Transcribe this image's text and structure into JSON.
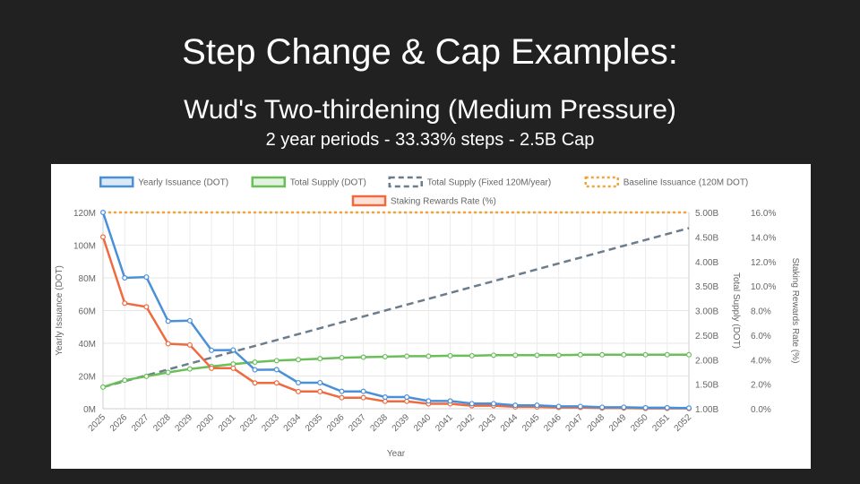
{
  "slide": {
    "title": "Step Change & Cap Examples:",
    "subtitle": "Wud's Two-thirdening (Medium Pressure)",
    "subsubtitle": "2 year periods - 33.33% steps - 2.5B Cap"
  },
  "chart_data": {
    "type": "line",
    "xlabel": "Year",
    "y_left_label": "Yearly Issuance (DOT)",
    "y_right1_label": "Total Supply (DOT)",
    "y_right2_label": "Staking Rewards Rate (%)",
    "x": [
      "2025",
      "2026",
      "2027",
      "2028",
      "2029",
      "2030",
      "2031",
      "2032",
      "2033",
      "2034",
      "2035",
      "2036",
      "2037",
      "2038",
      "2039",
      "2040",
      "2041",
      "2042",
      "2043",
      "2044",
      "2045",
      "2046",
      "2047",
      "2048",
      "2049",
      "2050",
      "2051",
      "2052"
    ],
    "y_left_ticks": [
      "0M",
      "20M",
      "40M",
      "60M",
      "80M",
      "100M",
      "120M"
    ],
    "y_left_range": [
      0,
      120
    ],
    "y_right1_ticks": [
      "1.00B",
      "1.50B",
      "2.00B",
      "2.50B",
      "3.00B",
      "3.50B",
      "4.00B",
      "4.50B",
      "5.00B"
    ],
    "y_right1_range": [
      1.0,
      5.0
    ],
    "y_right2_ticks": [
      "0.0%",
      "2.0%",
      "4.0%",
      "6.0%",
      "8.0%",
      "10.0%",
      "12.0%",
      "14.0%",
      "16.0%"
    ],
    "y_right2_range": [
      0,
      16
    ],
    "grid": true,
    "legend_position": "top",
    "series": [
      {
        "name": "Yearly Issuance (DOT)",
        "axis": "left",
        "color": "#4a90d9",
        "style": "solid",
        "markers": true,
        "values": [
          120,
          80,
          80.5,
          53.5,
          53.8,
          35.7,
          35.9,
          23.8,
          23.9,
          15.9,
          15.9,
          10.6,
          10.6,
          7.1,
          7.1,
          4.7,
          4.7,
          3.1,
          3.1,
          2.1,
          2.1,
          1.4,
          1.4,
          0.9,
          0.9,
          0.6,
          0.6,
          0.4
        ]
      },
      {
        "name": "Total Supply (DOT)",
        "axis": "right1",
        "color": "#6abf59",
        "style": "solid",
        "markers": true,
        "values": [
          1.44,
          1.58,
          1.66,
          1.74,
          1.81,
          1.86,
          1.91,
          1.95,
          1.98,
          2.0,
          2.02,
          2.04,
          2.05,
          2.06,
          2.07,
          2.07,
          2.08,
          2.08,
          2.09,
          2.09,
          2.09,
          2.09,
          2.1,
          2.1,
          2.1,
          2.1,
          2.1,
          2.1
        ]
      },
      {
        "name": "Total Supply (Fixed 120M/year)",
        "axis": "right1",
        "color": "#6b7c8c",
        "style": "dashed",
        "markers": false,
        "values": [
          1.44,
          1.56,
          1.68,
          1.8,
          1.92,
          2.04,
          2.16,
          2.28,
          2.4,
          2.52,
          2.64,
          2.76,
          2.88,
          3.0,
          3.12,
          3.24,
          3.36,
          3.48,
          3.6,
          3.72,
          3.84,
          3.96,
          4.08,
          4.2,
          4.32,
          4.44,
          4.56,
          4.68
        ]
      },
      {
        "name": "Baseline Issuance (120M DOT)",
        "axis": "left",
        "color": "#f0a53c",
        "style": "dotted",
        "markers": false,
        "values": [
          120,
          120,
          120,
          120,
          120,
          120,
          120,
          120,
          120,
          120,
          120,
          120,
          120,
          120,
          120,
          120,
          120,
          120,
          120,
          120,
          120,
          120,
          120,
          120,
          120,
          120,
          120,
          120
        ]
      },
      {
        "name": "Staking Rewards Rate (%)",
        "axis": "right2",
        "color": "#ef6a3f",
        "style": "solid",
        "markers": true,
        "values": [
          14.0,
          8.6,
          8.3,
          5.3,
          5.2,
          3.3,
          3.3,
          2.1,
          2.1,
          1.4,
          1.4,
          0.9,
          0.9,
          0.6,
          0.6,
          0.4,
          0.4,
          0.25,
          0.25,
          0.15,
          0.15,
          0.1,
          0.1,
          0.05,
          0.05,
          0.03,
          0.03,
          0.02
        ]
      }
    ]
  }
}
